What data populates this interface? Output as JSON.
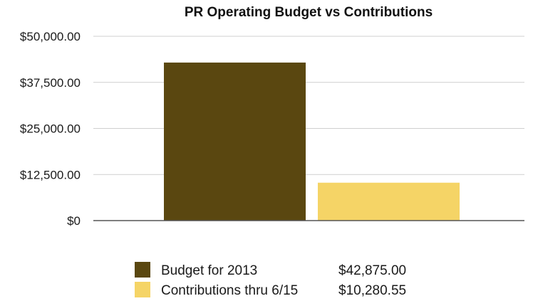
{
  "chart_data": {
    "type": "bar",
    "title": "PR Operating Budget vs Contributions",
    "xlabel": "",
    "ylabel": "",
    "ylim": [
      0,
      50000
    ],
    "yticks": [
      0,
      12500,
      25000,
      37500,
      50000
    ],
    "ytick_labels": [
      "$0",
      "$12,500.00",
      "$25,000.00",
      "$37,500.00",
      "$50,000.00"
    ],
    "grid": true,
    "legend_position": "bottom",
    "series": [
      {
        "name": "Budget for 2013",
        "value": 42875.0,
        "value_label": "$42,875.00",
        "color": "#5a4710"
      },
      {
        "name": "Contributions thru 6/15",
        "value": 10280.55,
        "value_label": "$10,280.55",
        "color": "#f5d466"
      }
    ]
  }
}
